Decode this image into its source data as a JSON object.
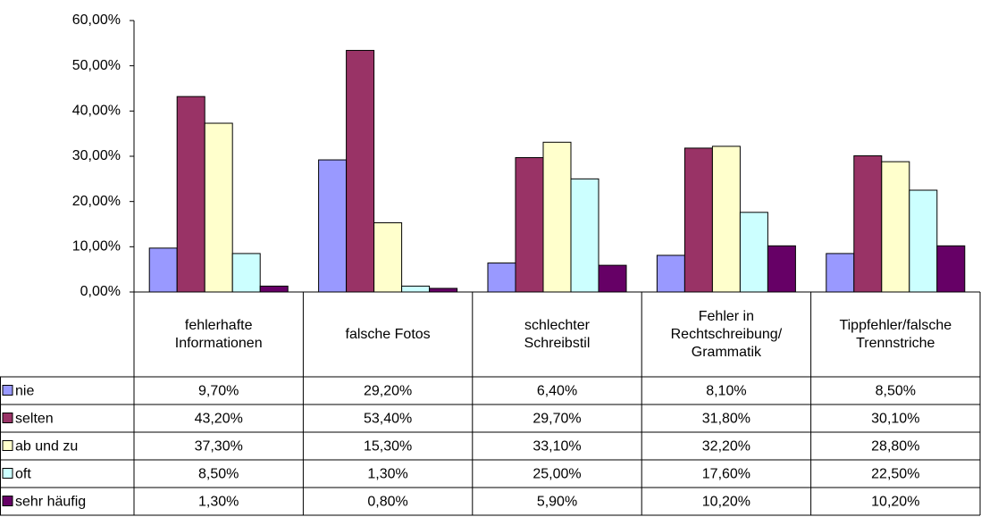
{
  "chart_data": {
    "type": "bar",
    "categories": [
      "fehlerhafte\nInformationen",
      "falsche Fotos",
      "schlechter\nSchreibstil",
      "Fehler in\nRechtschreibung/\nGrammatik",
      "Tippfehler/falsche\nTrennstriche"
    ],
    "series": [
      {
        "name": "nie",
        "color": "#9999ff",
        "values": [
          9.7,
          29.2,
          6.4,
          8.1,
          8.5
        ],
        "value_labels": [
          "9,70%",
          "29,20%",
          "6,40%",
          "8,10%",
          "8,50%"
        ]
      },
      {
        "name": "selten",
        "color": "#993366",
        "values": [
          43.2,
          53.4,
          29.7,
          31.8,
          30.1
        ],
        "value_labels": [
          "43,20%",
          "53,40%",
          "29,70%",
          "31,80%",
          "30,10%"
        ]
      },
      {
        "name": "ab und zu",
        "color": "#ffffcc",
        "values": [
          37.3,
          15.3,
          33.1,
          32.2,
          28.8
        ],
        "value_labels": [
          "37,30%",
          "15,30%",
          "33,10%",
          "32,20%",
          "28,80%"
        ]
      },
      {
        "name": "oft",
        "color": "#ccffff",
        "values": [
          8.5,
          1.3,
          25.0,
          17.6,
          22.5
        ],
        "value_labels": [
          "8,50%",
          "1,30%",
          "25,00%",
          "17,60%",
          "22,50%"
        ]
      },
      {
        "name": "sehr häufig",
        "color": "#660066",
        "values": [
          1.3,
          0.8,
          5.9,
          10.2,
          10.2
        ],
        "value_labels": [
          "1,30%",
          "0,80%",
          "5,90%",
          "10,20%",
          "10,20%"
        ]
      }
    ],
    "ylim": [
      0,
      60
    ],
    "yticks": [
      {
        "value": 0,
        "label": "0,00%"
      },
      {
        "value": 10,
        "label": "10,00%"
      },
      {
        "value": 20,
        "label": "20,00%"
      },
      {
        "value": 30,
        "label": "30,00%"
      },
      {
        "value": 40,
        "label": "40,00%"
      },
      {
        "value": 50,
        "label": "50,00%"
      },
      {
        "value": 60,
        "label": "60,00%"
      }
    ]
  }
}
